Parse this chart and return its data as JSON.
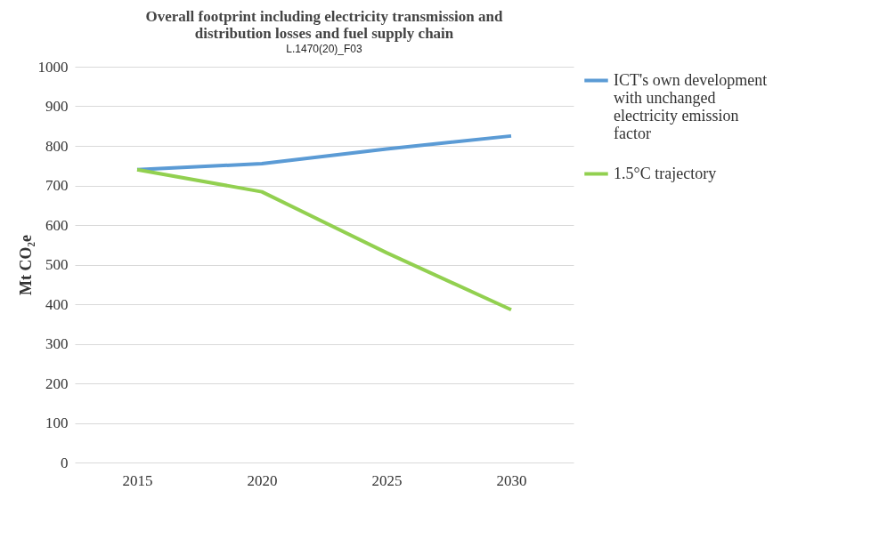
{
  "chart_data": {
    "type": "line",
    "title": [
      "Overall footprint including electricity transmission and",
      "distribution losses and fuel supply chain"
    ],
    "ylabel": "Mt CO₂e",
    "categories": [
      "2015",
      "2020",
      "2025",
      "2030"
    ],
    "series": [
      {
        "name": "ICT's own development with unchanged electricity emission factor",
        "color": "#5b9bd5",
        "values": [
          740,
          755,
          792,
          825
        ]
      },
      {
        "name": "1.5°C trajectory",
        "color": "#92d050",
        "values": [
          740,
          684,
          530,
          386
        ]
      }
    ],
    "ylim": [
      0,
      1000
    ],
    "yticks": [
      0,
      100,
      200,
      300,
      400,
      500,
      600,
      700,
      800,
      900,
      1000
    ],
    "grid": "y",
    "legend": "right",
    "marker": "none",
    "line_style": "solid",
    "annotations": [
      "L.1470(20)_F03"
    ]
  }
}
